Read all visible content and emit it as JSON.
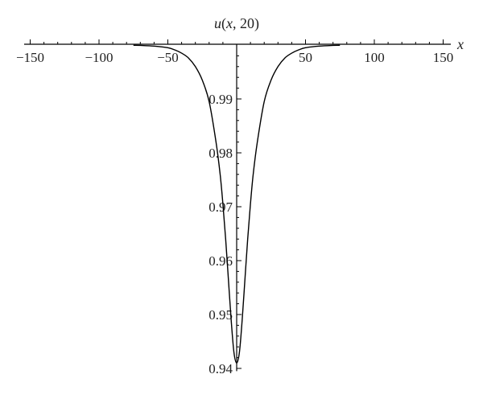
{
  "chart_data": {
    "type": "line",
    "title": "",
    "xlabel": "x",
    "ylabel": "u(x, 20)",
    "ylabel_parts": {
      "fn": "u",
      "open": "(",
      "var": "x",
      "rest": ", 20)"
    },
    "xlim": [
      -160,
      160
    ],
    "ylim": [
      0.9395,
      1.0
    ],
    "x_ticks": [
      -150,
      -100,
      -50,
      50,
      100,
      150
    ],
    "x_tick_labels": [
      "−150",
      "−100",
      "−50",
      "50",
      "100",
      "150"
    ],
    "y_ticks": [
      0.94,
      0.95,
      0.96,
      0.97,
      0.98,
      0.99
    ],
    "y_tick_labels": [
      "0.94",
      "0.95",
      "0.96",
      "0.97",
      "0.98",
      "0.99"
    ],
    "grid": false,
    "series": [
      {
        "color": "#000000",
        "x": [
          -75,
          -70,
          -60,
          -50,
          -45,
          -40,
          -35,
          -30,
          -25,
          -20,
          -15,
          -12,
          -10,
          -8,
          -6,
          -4,
          -2,
          0,
          2,
          4,
          6,
          8,
          10,
          12,
          15,
          20,
          25,
          30,
          35,
          40,
          45,
          50,
          60,
          70,
          75
        ],
        "values": [
          0.99995,
          0.99993,
          0.9998,
          0.9995,
          0.9991,
          0.9985,
          0.9976,
          0.996,
          0.9935,
          0.9895,
          0.982,
          0.976,
          0.9705,
          0.964,
          0.9565,
          0.949,
          0.943,
          0.941,
          0.943,
          0.949,
          0.9565,
          0.964,
          0.9705,
          0.976,
          0.982,
          0.9895,
          0.9935,
          0.996,
          0.9976,
          0.9985,
          0.9991,
          0.9995,
          0.9998,
          0.99993,
          0.99995
        ]
      }
    ]
  }
}
